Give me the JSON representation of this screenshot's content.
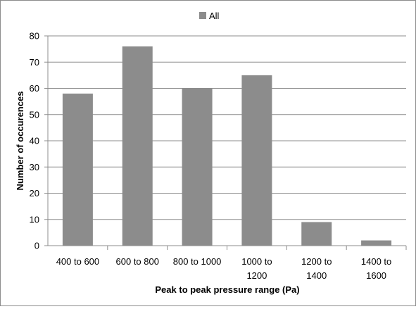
{
  "chart_data": {
    "type": "bar",
    "title": "",
    "xlabel": "Peak to peak pressure range (Pa)",
    "ylabel": "Number of occurences",
    "categories": [
      "400 to 600",
      "600 to 800",
      "800 to 1000",
      "1000 to 1200",
      "1200 to 1400",
      "1400 to 1600"
    ],
    "series": [
      {
        "name": "All",
        "values": [
          58,
          76,
          60,
          65,
          9,
          2
        ],
        "color": "#8c8c8c"
      }
    ],
    "ylim": [
      0,
      80
    ],
    "yticks": [
      0,
      10,
      20,
      30,
      40,
      50,
      60,
      70,
      80
    ],
    "grid": true,
    "legend_position": "top"
  }
}
